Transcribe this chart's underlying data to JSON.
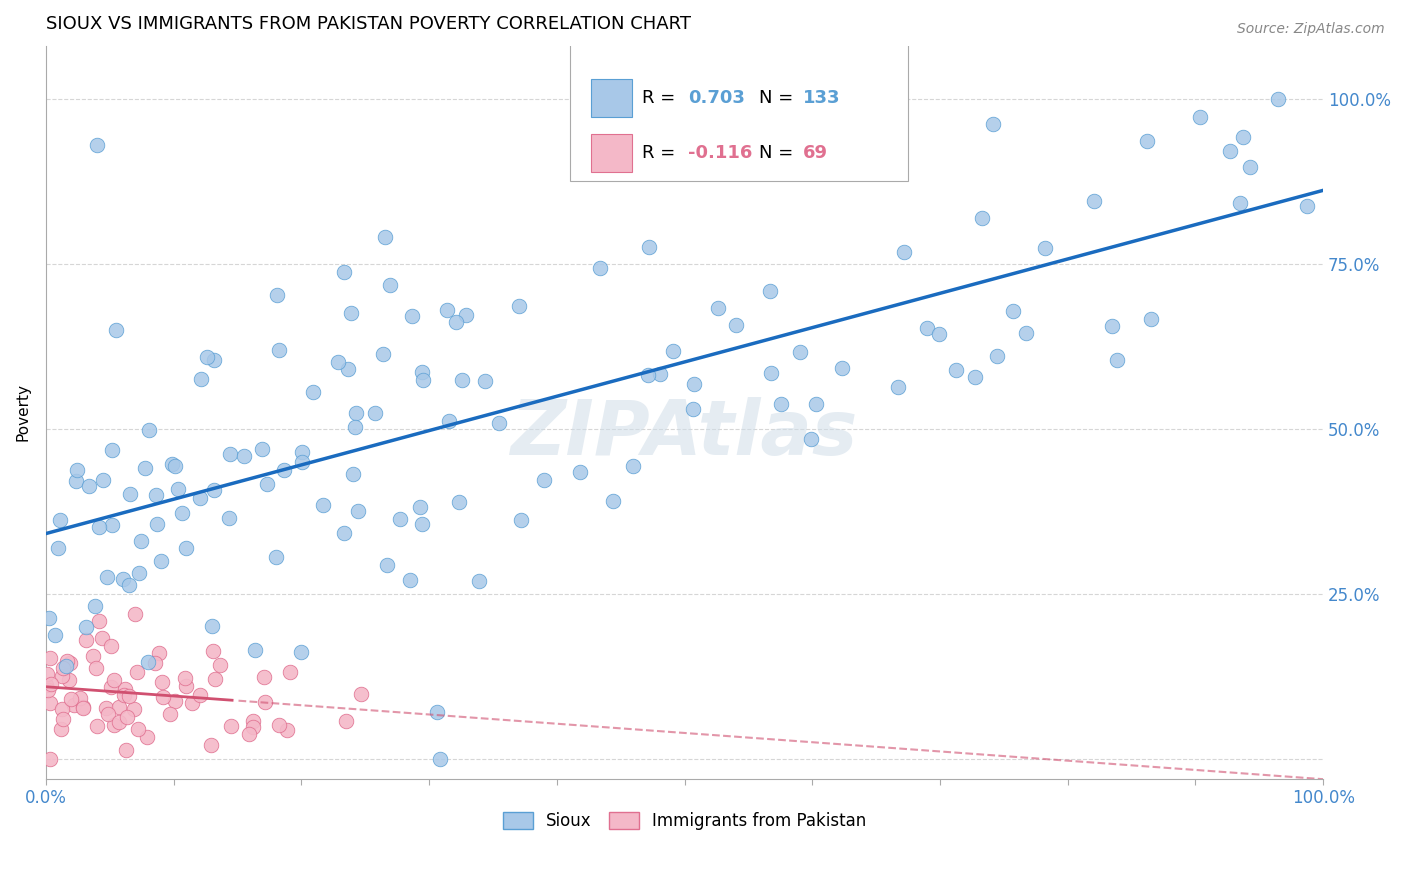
{
  "title": "SIOUX VS IMMIGRANTS FROM PAKISTAN POVERTY CORRELATION CHART",
  "source": "Source: ZipAtlas.com",
  "ylabel": "Poverty",
  "sioux_R": 0.703,
  "sioux_N": 133,
  "pakistan_R": -0.116,
  "pakistan_N": 69,
  "sioux_color": "#a8c8e8",
  "sioux_edge_color": "#5a9fd4",
  "sioux_line_color": "#1a6bbf",
  "pakistan_color": "#f4b8c8",
  "pakistan_edge_color": "#e07090",
  "pakistan_line_color": "#d05070",
  "background_color": "#ffffff",
  "grid_color": "#cccccc",
  "watermark": "ZIPAtlas",
  "title_fontsize": 13,
  "axis_label_fontsize": 11,
  "tick_label_color": "#4488cc",
  "sioux_legend_color": "#5a9fd4",
  "pakistan_legend_color": "#e07090"
}
